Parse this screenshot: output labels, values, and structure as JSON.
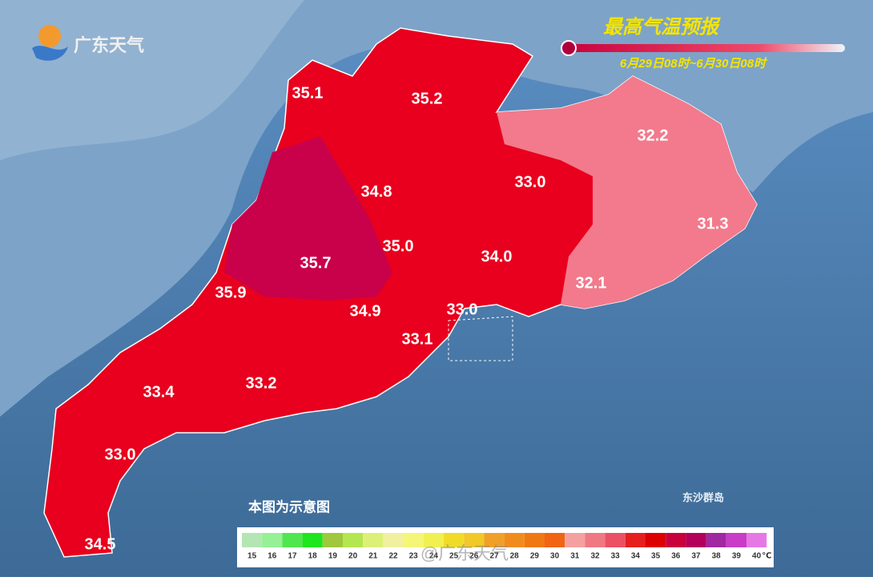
{
  "logo": "广东天气",
  "title": "最高气温预报",
  "period": "6月29日08时~6月30日08时",
  "temperatures": [
    "35.1",
    "35.2",
    "32.2",
    "34.8",
    "33.0",
    "31.3",
    "35.0",
    "34.0",
    "35.7",
    "35.9",
    "32.1",
    "34.9",
    "33.0",
    "33.1",
    "33.4",
    "33.2",
    "33.0",
    "34.5"
  ],
  "note": "本图为示意图",
  "island": "东沙群岛",
  "watermark": "@广东天气",
  "legend": {
    "unit": "℃",
    "items": [
      {
        "label": 15,
        "color": "#b4e6b4"
      },
      {
        "label": 16,
        "color": "#96f096"
      },
      {
        "label": 17,
        "color": "#50e650"
      },
      {
        "label": 18,
        "color": "#1ee61e"
      },
      {
        "label": 19,
        "color": "#a0c83c"
      },
      {
        "label": 20,
        "color": "#b4e650"
      },
      {
        "label": 21,
        "color": "#dcf078"
      },
      {
        "label": 22,
        "color": "#f0f0a0"
      },
      {
        "label": 23,
        "color": "#f5f578"
      },
      {
        "label": 24,
        "color": "#f0f050"
      },
      {
        "label": 25,
        "color": "#f0dc28"
      },
      {
        "label": 26,
        "color": "#f0c828"
      },
      {
        "label": 27,
        "color": "#f0a028"
      },
      {
        "label": 28,
        "color": "#f08c1e"
      },
      {
        "label": 29,
        "color": "#f07814"
      },
      {
        "label": 30,
        "color": "#f06414"
      },
      {
        "label": 31,
        "color": "#f5a0a0"
      },
      {
        "label": 32,
        "color": "#f07882"
      },
      {
        "label": 33,
        "color": "#eb5064"
      },
      {
        "label": 34,
        "color": "#e61e1e"
      },
      {
        "label": 35,
        "color": "#dc0000"
      },
      {
        "label": 36,
        "color": "#c8003c"
      },
      {
        "label": 37,
        "color": "#b4005a"
      },
      {
        "label": 38,
        "color": "#a028a0"
      },
      {
        "label": 39,
        "color": "#c83cc8"
      },
      {
        "label": 40,
        "color": "#e678e6"
      }
    ]
  }
}
